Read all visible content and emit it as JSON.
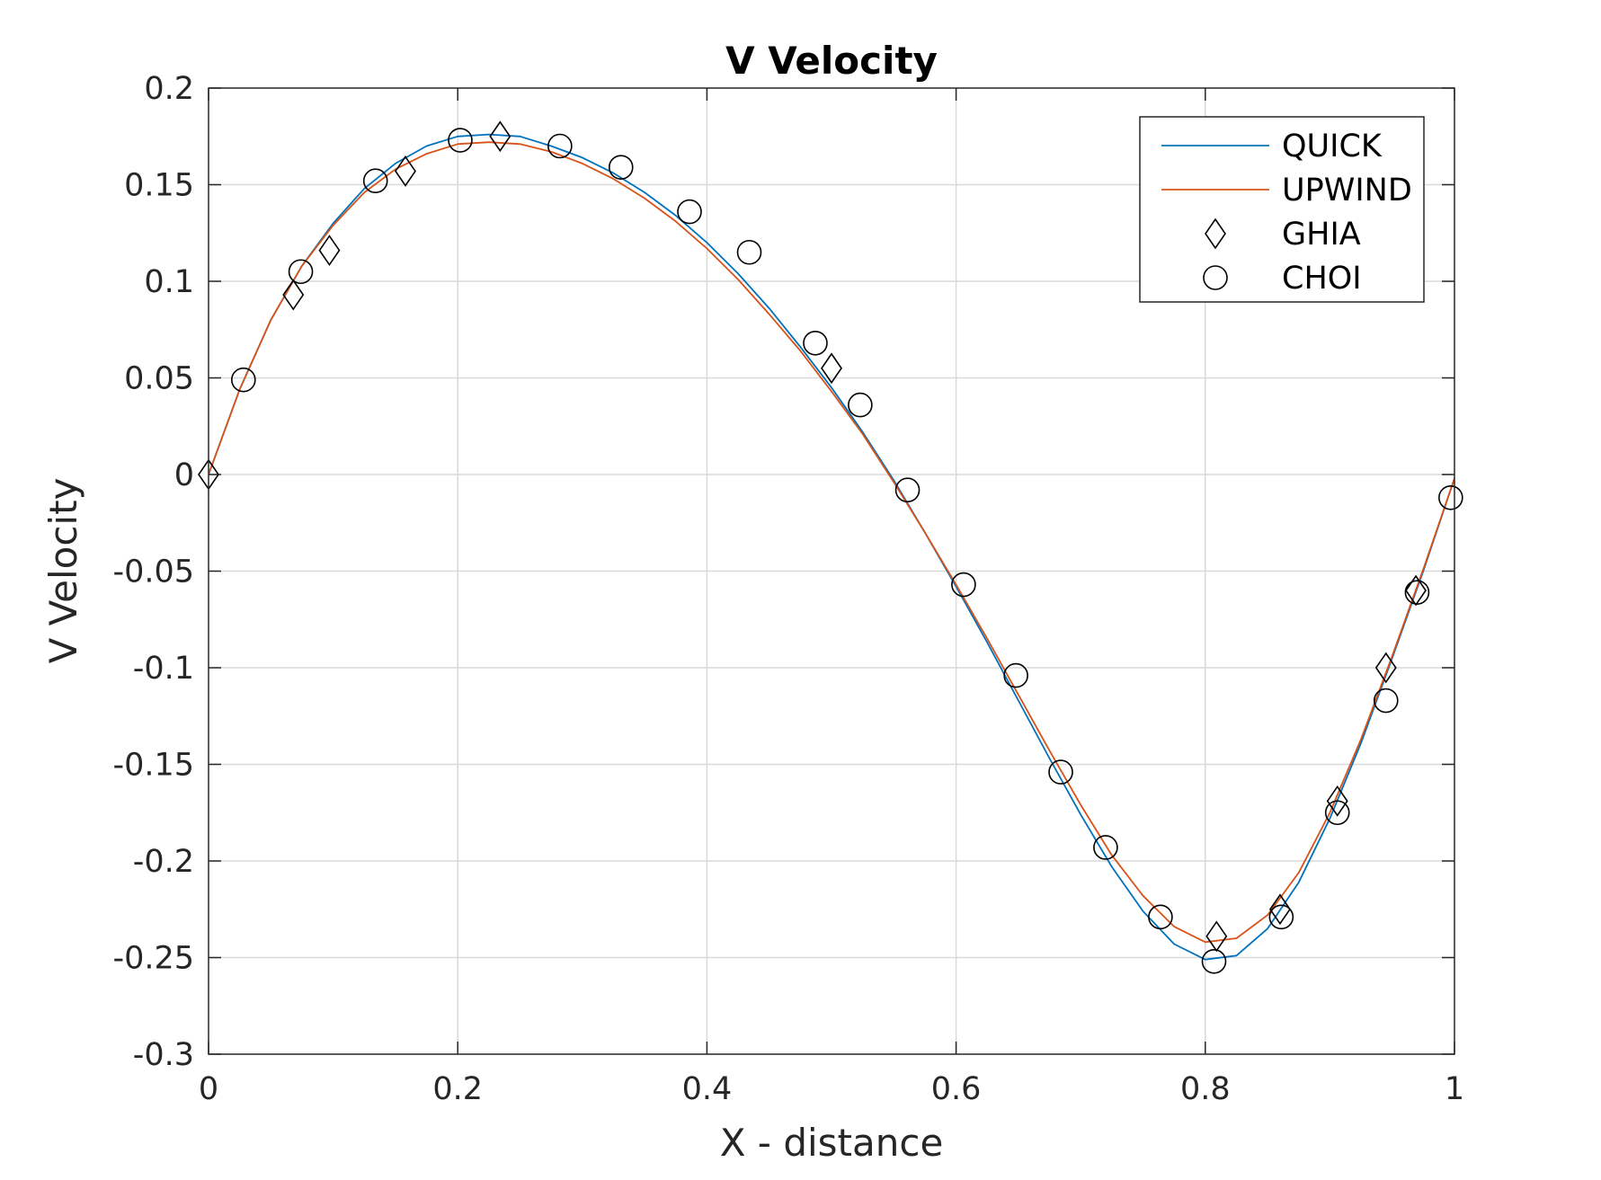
{
  "chart_data": {
    "type": "line",
    "title": "V Velocity",
    "xlabel": "X - distance",
    "ylabel": "V Velocity",
    "xlim": [
      0,
      1
    ],
    "ylim": [
      -0.3,
      0.2
    ],
    "grid": true,
    "legend_position": "top-right",
    "x_ticks": [
      0,
      0.2,
      0.4,
      0.6,
      0.8,
      1
    ],
    "x_tick_labels": [
      "0",
      "0.2",
      "0.4",
      "0.6",
      "0.8",
      "1"
    ],
    "y_ticks": [
      0.2,
      0.15,
      0.1,
      0.05,
      0,
      -0.05,
      -0.1,
      -0.15,
      -0.2,
      -0.25,
      -0.3
    ],
    "y_tick_labels": [
      "0.2",
      "0.15",
      "0.1",
      "0.05",
      "0",
      "-0.05",
      "-0.1",
      "-0.15",
      "-0.2",
      "-0.25",
      "-0.3"
    ],
    "series": [
      {
        "name": "QUICK",
        "style": "line",
        "color": "#0072BD",
        "x": [
          0,
          0.025,
          0.05,
          0.075,
          0.1,
          0.125,
          0.15,
          0.175,
          0.2,
          0.225,
          0.25,
          0.275,
          0.3,
          0.325,
          0.35,
          0.375,
          0.4,
          0.425,
          0.45,
          0.475,
          0.5,
          0.525,
          0.55,
          0.575,
          0.6,
          0.625,
          0.65,
          0.675,
          0.7,
          0.725,
          0.75,
          0.775,
          0.8,
          0.825,
          0.85,
          0.875,
          0.9,
          0.925,
          0.95,
          0.975,
          1
        ],
        "y": [
          0,
          0.044,
          0.08,
          0.108,
          0.13,
          0.148,
          0.161,
          0.17,
          0.175,
          0.176,
          0.175,
          0.17,
          0.164,
          0.156,
          0.146,
          0.134,
          0.12,
          0.104,
          0.086,
          0.066,
          0.045,
          0.022,
          -0.003,
          -0.03,
          -0.058,
          -0.087,
          -0.117,
          -0.147,
          -0.176,
          -0.203,
          -0.226,
          -0.243,
          -0.251,
          -0.249,
          -0.235,
          -0.211,
          -0.178,
          -0.139,
          -0.095,
          -0.05,
          -0.002
        ]
      },
      {
        "name": "UPWIND",
        "style": "line",
        "color": "#D95319",
        "x": [
          0,
          0.025,
          0.05,
          0.075,
          0.1,
          0.125,
          0.15,
          0.175,
          0.2,
          0.225,
          0.25,
          0.275,
          0.3,
          0.325,
          0.35,
          0.375,
          0.4,
          0.425,
          0.45,
          0.475,
          0.5,
          0.525,
          0.55,
          0.575,
          0.6,
          0.625,
          0.65,
          0.675,
          0.7,
          0.725,
          0.75,
          0.775,
          0.8,
          0.825,
          0.85,
          0.875,
          0.9,
          0.925,
          0.95,
          0.975,
          1
        ],
        "y": [
          0,
          0.044,
          0.08,
          0.108,
          0.129,
          0.146,
          0.158,
          0.166,
          0.171,
          0.172,
          0.171,
          0.167,
          0.161,
          0.153,
          0.143,
          0.131,
          0.117,
          0.101,
          0.083,
          0.064,
          0.043,
          0.021,
          -0.004,
          -0.03,
          -0.057,
          -0.085,
          -0.114,
          -0.143,
          -0.171,
          -0.197,
          -0.218,
          -0.234,
          -0.242,
          -0.24,
          -0.228,
          -0.206,
          -0.175,
          -0.137,
          -0.094,
          -0.049,
          -0.002
        ]
      },
      {
        "name": "GHIA",
        "style": "marker",
        "marker": "diamond",
        "color": "#000000",
        "x": [
          0,
          0.068,
          0.097,
          0.158,
          0.234,
          0.5,
          0.809,
          0.86,
          0.906,
          0.945,
          0.969
        ],
        "y": [
          0,
          0.093,
          0.116,
          0.157,
          0.175,
          0.055,
          -0.239,
          -0.225,
          -0.169,
          -0.1,
          -0.06
        ]
      },
      {
        "name": "CHOI",
        "style": "marker",
        "marker": "circle",
        "color": "#000000",
        "x": [
          0.028,
          0.074,
          0.134,
          0.202,
          0.282,
          0.331,
          0.386,
          0.434,
          0.487,
          0.523,
          0.561,
          0.606,
          0.648,
          0.684,
          0.72,
          0.764,
          0.807,
          0.861,
          0.906,
          0.945,
          0.97,
          0.997
        ],
        "y": [
          0.049,
          0.105,
          0.152,
          0.173,
          0.17,
          0.159,
          0.136,
          0.115,
          0.068,
          0.036,
          -0.008,
          -0.057,
          -0.104,
          -0.154,
          -0.193,
          -0.229,
          -0.252,
          -0.229,
          -0.175,
          -0.117,
          -0.061,
          -0.012
        ]
      }
    ]
  }
}
